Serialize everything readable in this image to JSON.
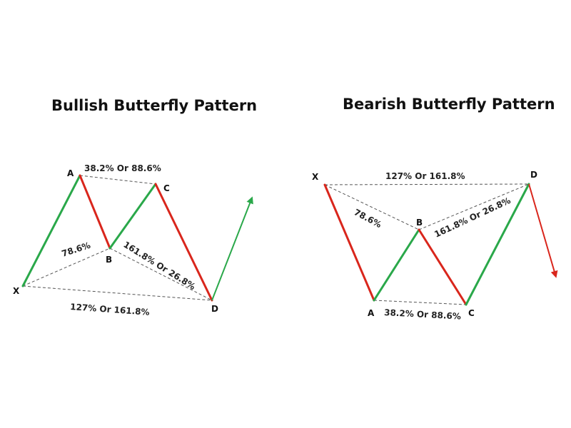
{
  "colors": {
    "bullish_leg": "#2aa84a",
    "bearish_leg": "#d9261c",
    "dashed": "#555555",
    "text": "#111111"
  },
  "bullish": {
    "title": "Bullish Butterfly Pattern",
    "points": {
      "x": "X",
      "a": "A",
      "b": "B",
      "c": "C",
      "d": "D"
    },
    "ratios": {
      "ac": "38.2% Or 88.6%",
      "xb": "78.6%",
      "bd": "161.8% Or 26.8%",
      "xd": "127% Or 161.8%"
    }
  },
  "bearish": {
    "title": "Bearish Butterfly Pattern",
    "points": {
      "x": "X",
      "a": "A",
      "b": "B",
      "c": "C",
      "d": "D"
    },
    "ratios": {
      "xd": "127% Or 161.8%",
      "xb": "78.6%",
      "bd": "161.8% Or 26.8%",
      "ac": "38.2% Or 88.6%"
    }
  }
}
